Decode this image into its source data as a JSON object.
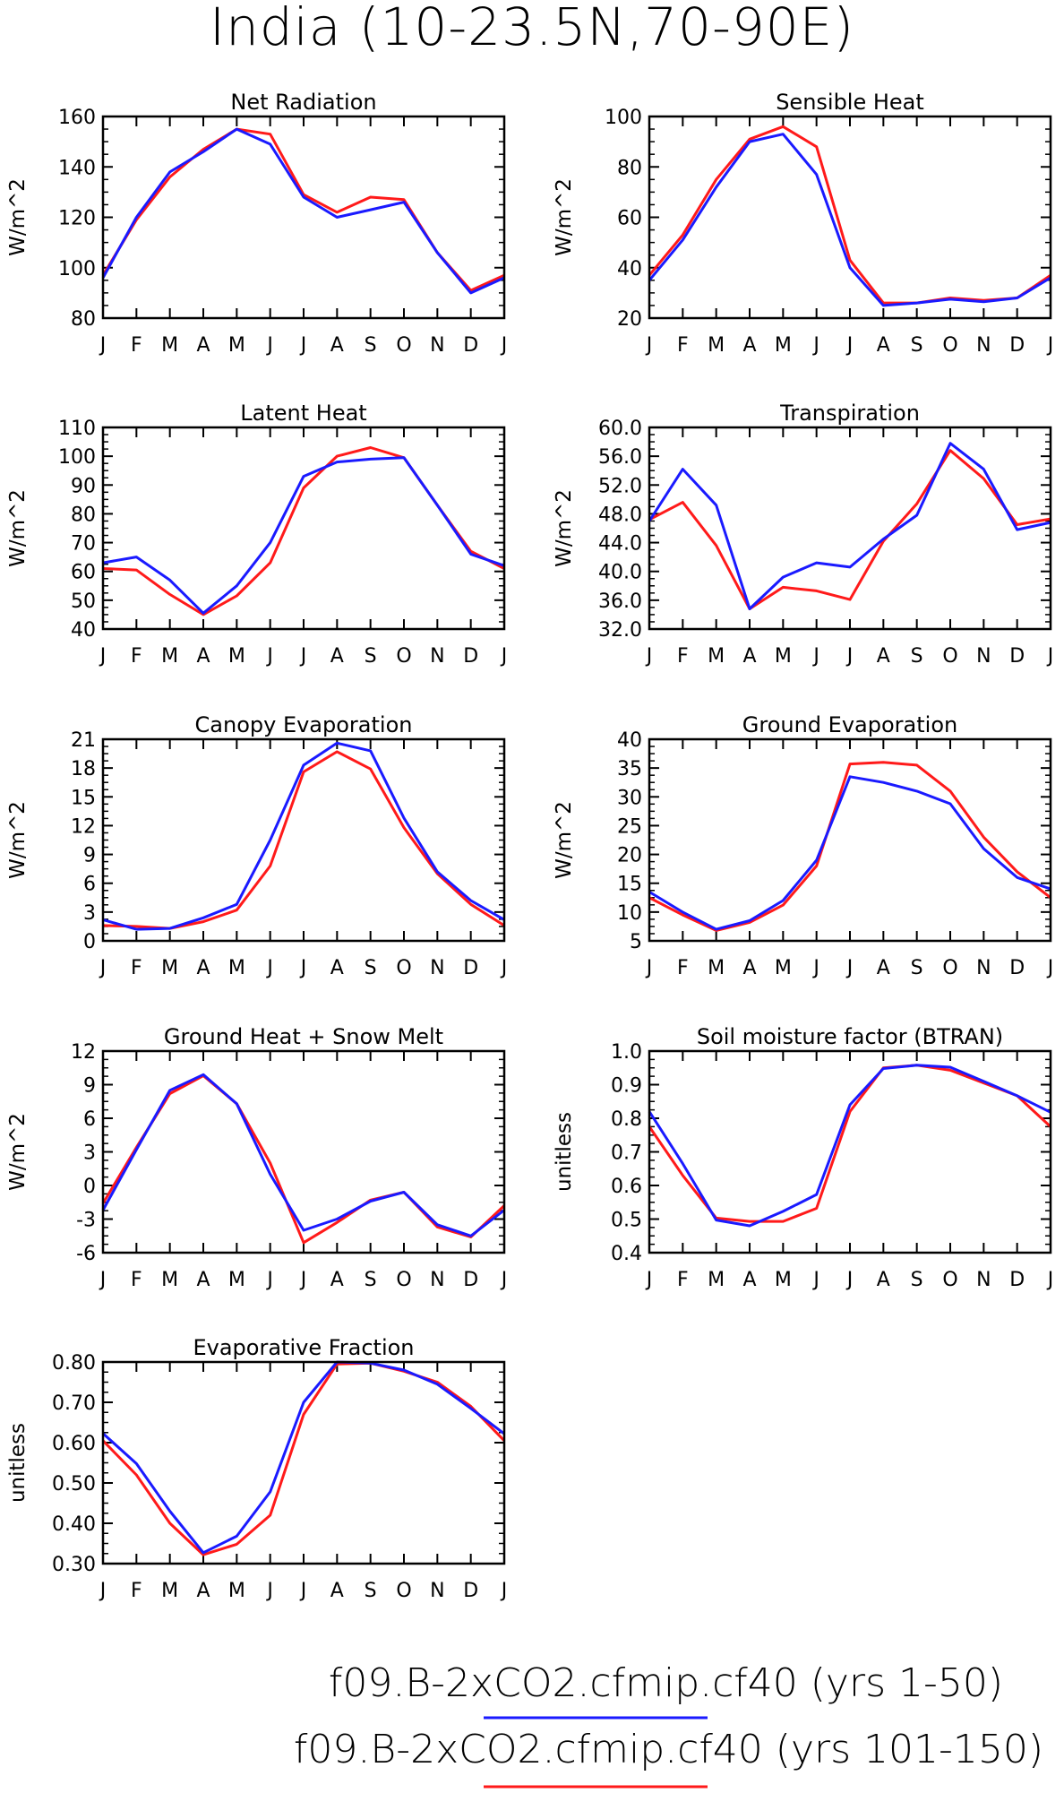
{
  "title": "India (10-23.5N,70-90E)",
  "months": [
    "J",
    "F",
    "M",
    "A",
    "M",
    "J",
    "J",
    "A",
    "S",
    "O",
    "N",
    "D",
    "J"
  ],
  "colors": {
    "series_1": "#1a1aff",
    "series_2": "#ff1a1a"
  },
  "legend": [
    {
      "label": "f09.B-2xCO2.cfmip.cf40 (yrs 1-50)",
      "color": "#1a1aff"
    },
    {
      "label": "f09.B-2xCO2.cfmip.cf40 (yrs 101-150)",
      "color": "#ff1a1a"
    }
  ],
  "chart_data": [
    {
      "type": "line",
      "title": "Net Radiation",
      "ylabel": "W/m^2",
      "ylim": [
        80,
        160
      ],
      "yticks": [
        "80",
        "100",
        "120",
        "140",
        "160"
      ],
      "series": [
        {
          "values": [
            96,
            120,
            138,
            146,
            155,
            149,
            128,
            120,
            123,
            126,
            106,
            90,
            96
          ]
        },
        {
          "values": [
            97,
            119,
            136,
            147,
            155,
            153,
            129,
            122,
            128,
            127,
            106,
            91,
            97
          ]
        }
      ]
    },
    {
      "type": "line",
      "title": "Sensible Heat",
      "ylabel": "W/m^2",
      "ylim": [
        20,
        100
      ],
      "yticks": [
        "20",
        "40",
        "60",
        "80",
        "100"
      ],
      "series": [
        {
          "values": [
            35,
            51,
            72,
            90,
            93,
            77,
            40,
            25,
            26,
            27.5,
            26.5,
            28,
            36
          ]
        },
        {
          "values": [
            37,
            53,
            75,
            91,
            96,
            88,
            43,
            26,
            26,
            28,
            27,
            28,
            37
          ]
        }
      ]
    },
    {
      "type": "line",
      "title": "Latent Heat",
      "ylabel": "W/m^2",
      "ylim": [
        40,
        110
      ],
      "yticks": [
        "40",
        "50",
        "60",
        "70",
        "80",
        "90",
        "100",
        "110"
      ],
      "series": [
        {
          "values": [
            63,
            65,
            57,
            45.5,
            55,
            70,
            93,
            98,
            99,
            99.5,
            83,
            66,
            62
          ]
        },
        {
          "values": [
            61,
            60.5,
            52,
            45,
            51.5,
            63,
            89,
            100,
            103,
            99.5,
            83,
            67,
            61
          ]
        }
      ]
    },
    {
      "type": "line",
      "title": "Transpiration",
      "ylabel": "W/m^2",
      "ylim": [
        32,
        60
      ],
      "yticks": [
        "32.0",
        "36.0",
        "40.0",
        "44.0",
        "48.0",
        "52.0",
        "56.0",
        "60.0"
      ],
      "series": [
        {
          "values": [
            47,
            54.2,
            49.2,
            34.8,
            39.2,
            41.2,
            40.6,
            44.5,
            47.8,
            57.8,
            54.2,
            45.8,
            46.8
          ]
        },
        {
          "values": [
            47.2,
            49.6,
            43.6,
            34.8,
            37.8,
            37.3,
            36.1,
            44.2,
            49.4,
            56.8,
            52.9,
            46.5,
            47.3
          ]
        }
      ]
    },
    {
      "type": "line",
      "title": "Canopy Evaporation",
      "ylabel": "W/m^2",
      "ylim": [
        0,
        21
      ],
      "yticks": [
        "0",
        "3",
        "6",
        "9",
        "12",
        "15",
        "18",
        "21"
      ],
      "series": [
        {
          "values": [
            2.2,
            1.2,
            1.3,
            2.4,
            3.8,
            10.5,
            18.3,
            20.6,
            19.8,
            12.8,
            7.2,
            4.2,
            2.2
          ]
        },
        {
          "values": [
            1.6,
            1.5,
            1.3,
            2.0,
            3.2,
            7.8,
            17.6,
            19.7,
            17.9,
            11.8,
            7.0,
            3.8,
            1.6
          ]
        }
      ]
    },
    {
      "type": "line",
      "title": "Ground Evaporation",
      "ylabel": "W/m^2",
      "ylim": [
        5,
        40
      ],
      "yticks": [
        "5",
        "10",
        "15",
        "20",
        "25",
        "30",
        "35",
        "40"
      ],
      "series": [
        {
          "values": [
            13.5,
            10,
            7,
            8.5,
            12,
            19,
            33.5,
            32.5,
            31,
            28.8,
            21,
            16,
            14
          ]
        },
        {
          "values": [
            12.5,
            9.5,
            6.8,
            8.2,
            11.2,
            18,
            35.7,
            36,
            35.5,
            31,
            23,
            17,
            12.5
          ]
        }
      ]
    },
    {
      "type": "line",
      "title": "Ground Heat + Snow Melt",
      "ylabel": "W/m^2",
      "ylim": [
        -6,
        12
      ],
      "yticks": [
        "-6",
        "-3",
        "0",
        "3",
        "6",
        "9",
        "12"
      ],
      "series": [
        {
          "values": [
            -2.2,
            3.2,
            8.5,
            9.9,
            7.3,
            1.0,
            -4.0,
            -3.0,
            -1.4,
            -0.6,
            -3.5,
            -4.5,
            -2.2
          ]
        },
        {
          "values": [
            -1.6,
            3.4,
            8.2,
            9.8,
            7.3,
            2.0,
            -5.1,
            -3.3,
            -1.3,
            -0.6,
            -3.7,
            -4.6,
            -1.8
          ]
        }
      ]
    },
    {
      "type": "line",
      "title": "Soil moisture factor (BTRAN)",
      "ylabel": "unitless",
      "ylim": [
        0.4,
        1.0
      ],
      "yticks": [
        "0.4",
        "0.5",
        "0.6",
        "0.7",
        "0.8",
        "0.9",
        "1.0"
      ],
      "series": [
        {
          "values": [
            0.82,
            0.665,
            0.497,
            0.48,
            0.523,
            0.573,
            0.84,
            0.948,
            0.958,
            0.952,
            0.91,
            0.867,
            0.818
          ]
        },
        {
          "values": [
            0.775,
            0.63,
            0.503,
            0.493,
            0.493,
            0.532,
            0.82,
            0.95,
            0.958,
            0.943,
            0.905,
            0.867,
            0.775
          ]
        }
      ]
    },
    {
      "type": "line",
      "title": "Evaporative Fraction",
      "ylabel": "unitless",
      "ylim": [
        0.3,
        0.8
      ],
      "yticks": [
        "0.30",
        "0.40",
        "0.50",
        "0.60",
        "0.70",
        "0.80"
      ],
      "series": [
        {
          "values": [
            0.623,
            0.548,
            0.43,
            0.327,
            0.368,
            0.478,
            0.7,
            0.8,
            0.797,
            0.78,
            0.745,
            0.685,
            0.622
          ]
        },
        {
          "values": [
            0.605,
            0.52,
            0.4,
            0.322,
            0.348,
            0.42,
            0.67,
            0.795,
            0.797,
            0.777,
            0.75,
            0.69,
            0.605
          ]
        }
      ]
    }
  ]
}
